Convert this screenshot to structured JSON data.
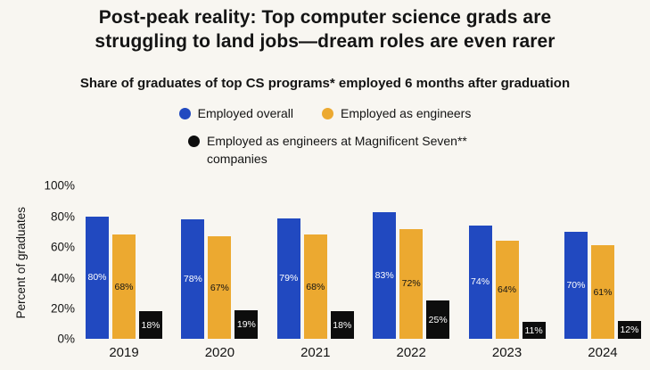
{
  "header": {
    "title_line1": "Post-peak reality: Top computer science grads are",
    "title_line2": "struggling to land jobs—dream roles are even rarer",
    "subtitle": "Share of graduates of top CS programs* employed 6 months after graduation"
  },
  "legend": {
    "items": [
      {
        "label": "Employed overall",
        "color": "#2149c0"
      },
      {
        "label": "Employed as engineers",
        "color": "#eca930"
      },
      {
        "label": "Employed as engineers at Magnificent Seven** companies",
        "color": "#0d0d0d"
      }
    ]
  },
  "chart_data": {
    "type": "bar",
    "title": "Share of graduates of top CS programs* employed 6 months after graduation",
    "categories": [
      "2019",
      "2020",
      "2021",
      "2022",
      "2023",
      "2024"
    ],
    "series": [
      {
        "name": "Employed overall",
        "color": "#2149c0",
        "label_color": "#ffffff",
        "values": [
          80,
          78,
          79,
          83,
          74,
          70
        ]
      },
      {
        "name": "Employed as engineers",
        "color": "#eca930",
        "label_color": "#141414",
        "values": [
          68,
          67,
          68,
          72,
          64,
          61
        ]
      },
      {
        "name": "Employed as engineers at Magnificent Seven** companies",
        "color": "#0d0d0d",
        "label_color": "#ffffff",
        "values": [
          18,
          19,
          18,
          25,
          11,
          12
        ]
      }
    ],
    "ylabel": "Percent of graduates",
    "xlabel": "",
    "ylim": [
      0,
      100
    ],
    "yticks": [
      0,
      20,
      40,
      60,
      80,
      100
    ],
    "label_format": "percent",
    "legend_position": "top",
    "grid": false
  }
}
